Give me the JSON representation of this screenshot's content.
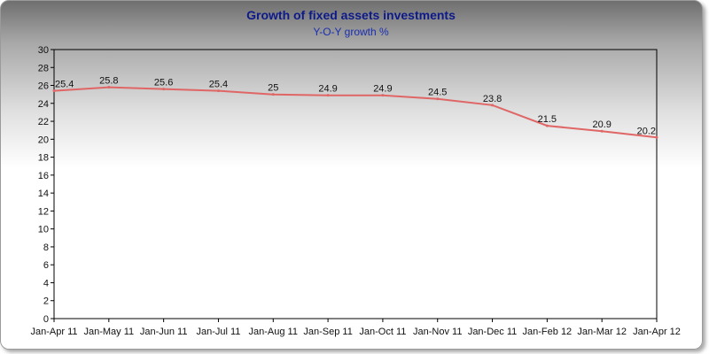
{
  "chart_data": {
    "type": "line",
    "title": "Growth of fixed assets investments",
    "subtitle": "Y-O-Y growth %",
    "categories": [
      "Jan-Apr 11",
      "Jan-May 11",
      "Jan-Jun 11",
      "Jan-Jul 11",
      "Jan-Aug 11",
      "Jan-Sep 11",
      "Jan-Oct 11",
      "Jan-Nov 11",
      "Jan-Dec 11",
      "Jan-Feb 12",
      "Jan-Mar 12",
      "Jan-Apr 12"
    ],
    "values": [
      25.4,
      25.8,
      25.6,
      25.4,
      25,
      24.9,
      24.9,
      24.5,
      23.8,
      21.5,
      20.9,
      20.2
    ],
    "data_labels": [
      "25.4",
      "25.8",
      "25.6",
      "25.4",
      "25",
      "24.9",
      "24.9",
      "24.5",
      "23.8",
      "21.5",
      "20.9",
      "20.2"
    ],
    "ylim": [
      0,
      30
    ],
    "yticks": [
      0,
      2,
      4,
      6,
      8,
      10,
      12,
      14,
      16,
      18,
      20,
      22,
      24,
      26,
      28,
      30
    ],
    "grid": false,
    "legend": "none",
    "line_color": "#e06666",
    "title_color": "#0d1a8a",
    "subtitle_color": "#1a2fb0"
  }
}
